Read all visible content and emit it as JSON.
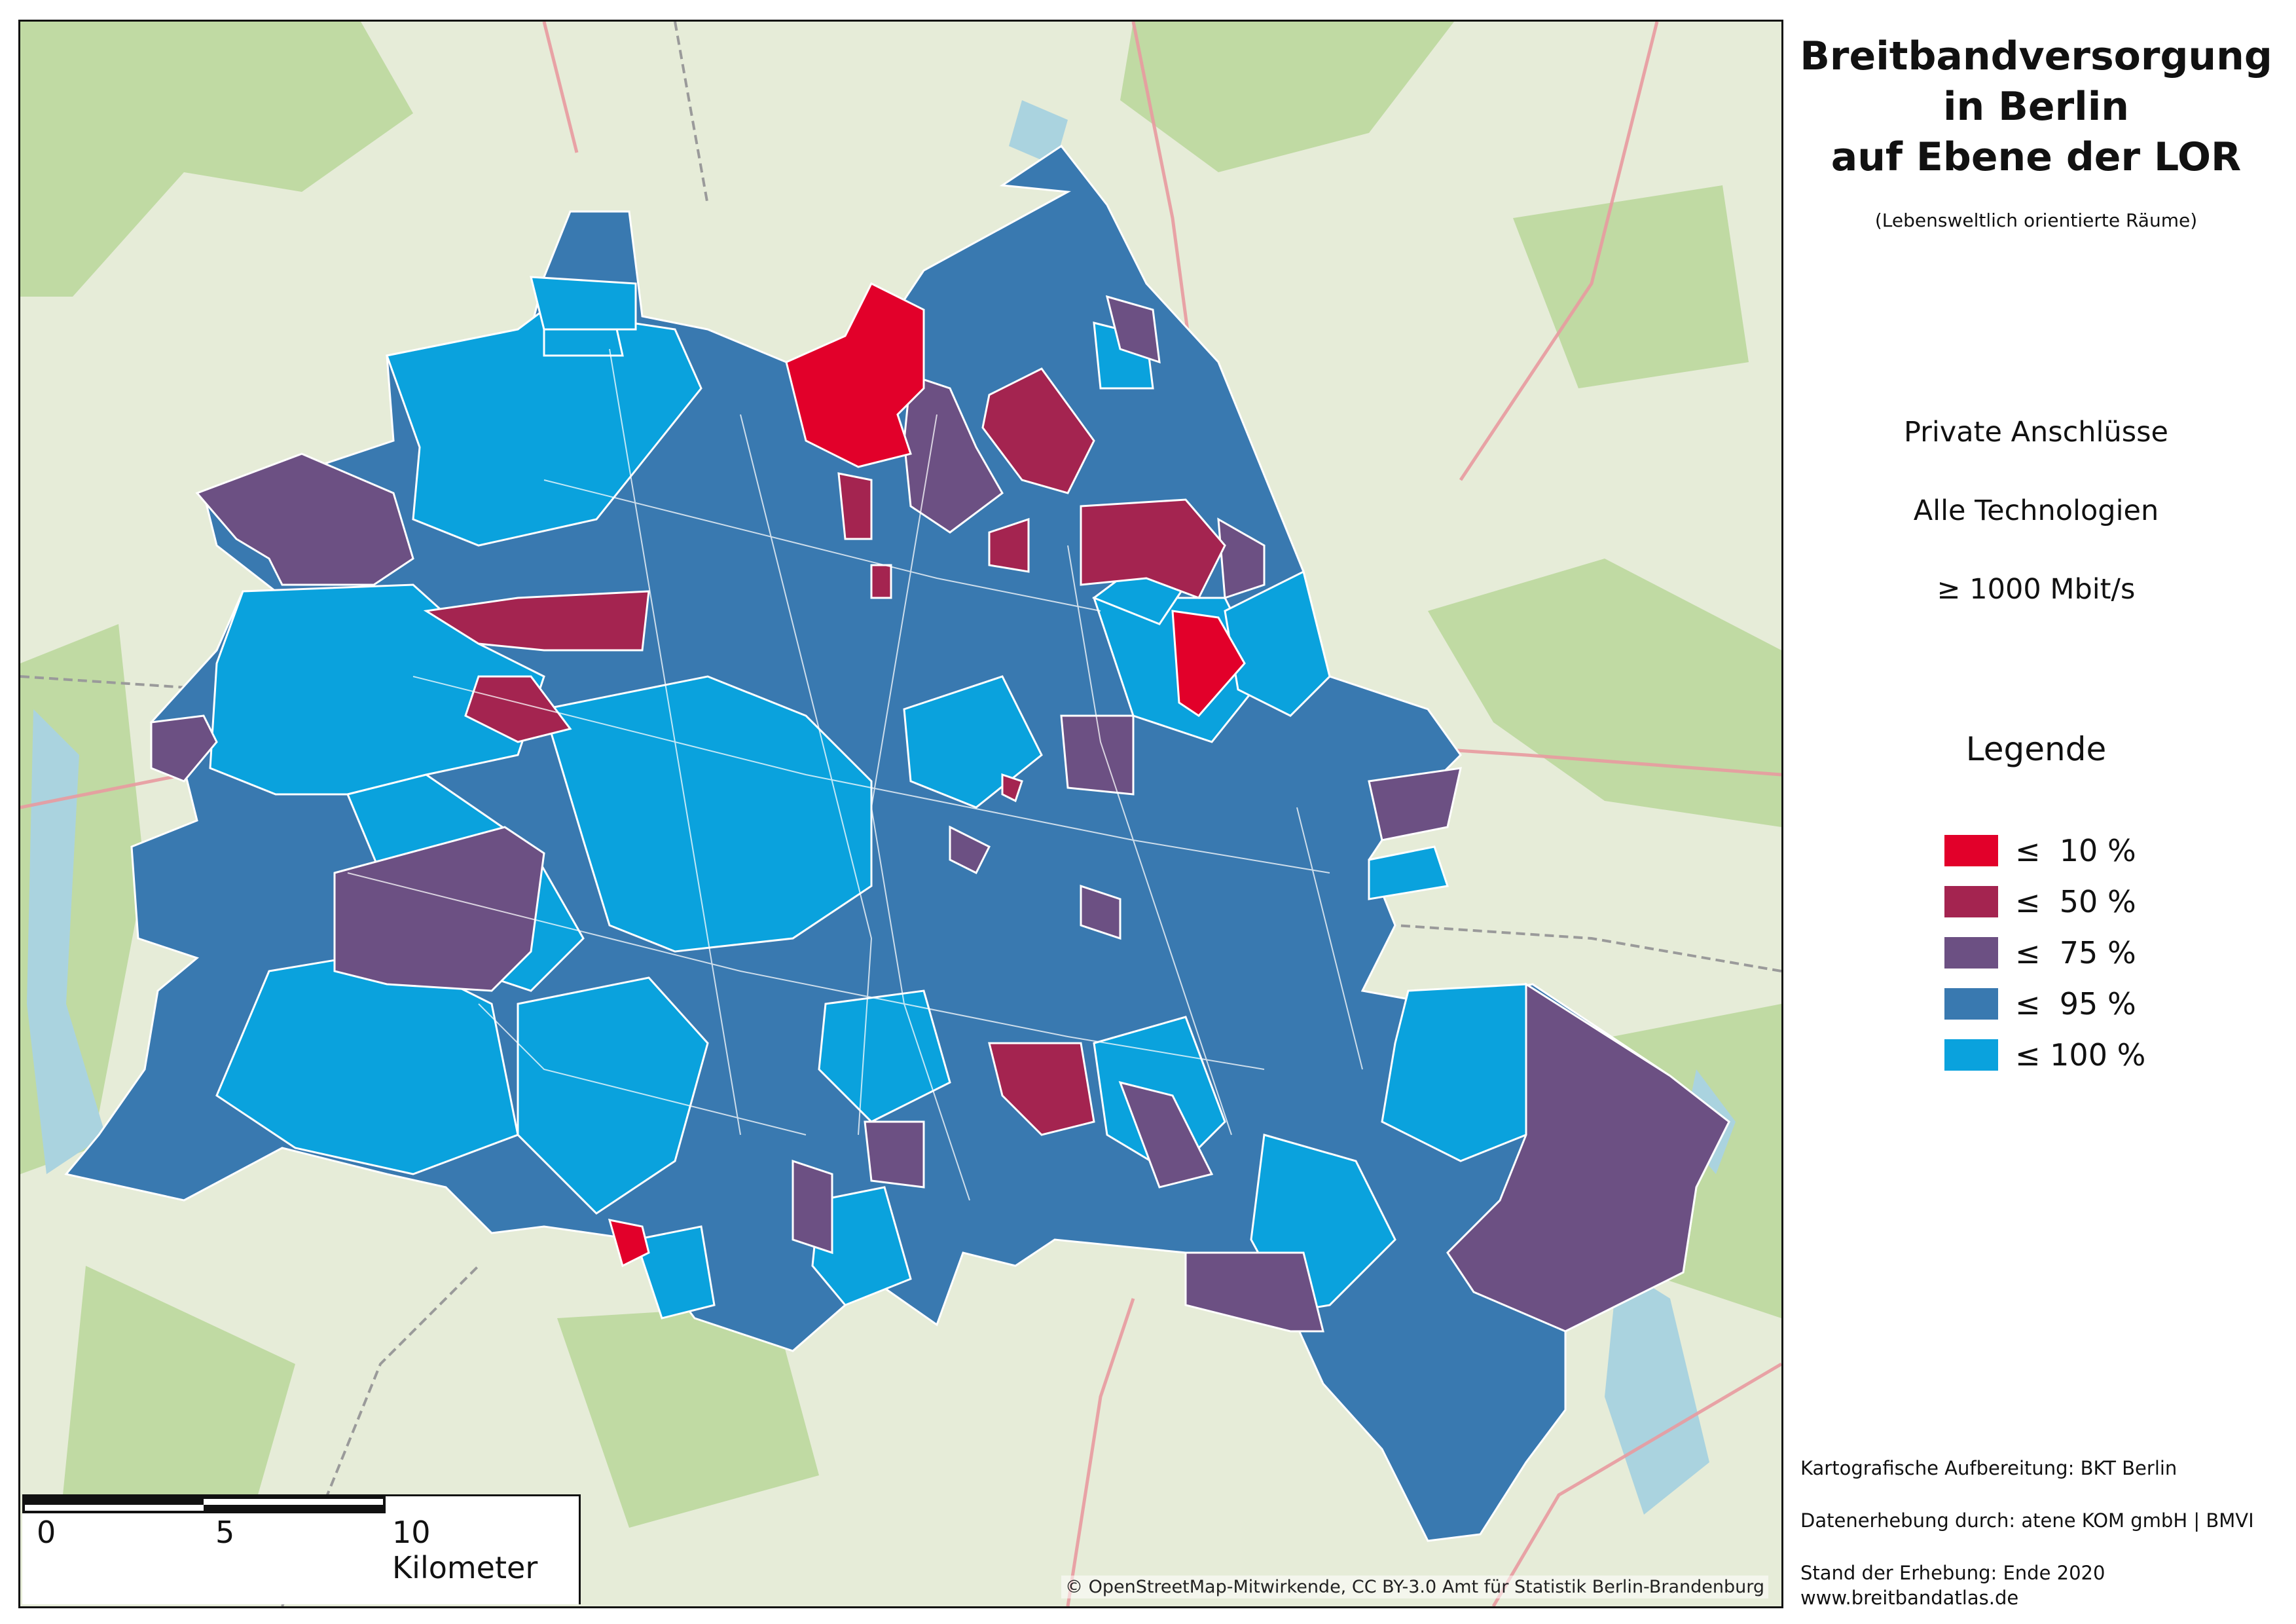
{
  "map": {
    "title_lines": [
      "Breitbandversorgung",
      "in Berlin",
      "auf Ebene der LOR"
    ],
    "subtitle": "(Lebensweltlich orientierte Räume)",
    "info": {
      "connection_type": "Private Anschlüsse",
      "technology": "Alle Technologien",
      "bandwidth": "≥ 1000 Mbit/s"
    },
    "legend": {
      "heading": "Legende",
      "classes": [
        {
          "label": "≤  10 %",
          "color": "#e2002a"
        },
        {
          "label": "≤  50 %",
          "color": "#a42450"
        },
        {
          "label": "≤  75 %",
          "color": "#6c5083"
        },
        {
          "label": "≤  95 %",
          "color": "#3979b0"
        },
        {
          "label": "≤ 100 %",
          "color": "#0aa2dd"
        }
      ]
    },
    "scale": {
      "labels": [
        "0",
        "5",
        "10 Kilometer"
      ]
    },
    "attribution": "© OpenStreetMap-Mitwirkende, CC BY-3.0 Amt für Statistik Berlin-Brandenburg",
    "credits": {
      "cartography": "Kartografische Aufbereitung: BKT Berlin",
      "data": "Datenerhebung durch: atene KOM gmbH | BMVI",
      "status": "Stand der Erhebung: Ende 2020",
      "website": "www.breitbandatlas.de"
    },
    "basemap_colors": {
      "land": "#e6ecd8",
      "forest": "#b9d79a",
      "water": "#aad3df",
      "road": "#e89aa0",
      "boundary": "#ffffff"
    }
  }
}
